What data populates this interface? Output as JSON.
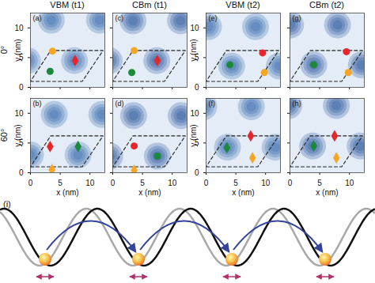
{
  "column_titles": [
    "VBM (t1)",
    "CBm (t1)",
    "VBM (t2)",
    "CBm (t2)"
  ],
  "row_labels": [
    "0°",
    "60°"
  ],
  "schematic": {
    "label": "(i)"
  },
  "chart_data": [
    {
      "type": "scatter",
      "title": "(a)",
      "xlim": [
        0,
        12.5
      ],
      "ylim": [
        0,
        12.5
      ],
      "xticks": [
        0,
        5,
        10
      ],
      "yticks": [
        0,
        5,
        10
      ],
      "y_label": "y (nm)",
      "tick_labels": "y",
      "blobs": {
        "color": "#2f63aa",
        "x": [
          7.4,
          3.5,
          11.6,
          -0.5,
          3.5,
          11.5
        ],
        "y": [
          4.5,
          11.3,
          11.3,
          4.5,
          -2.3,
          -2.3
        ]
      },
      "cell": {
        "line_style": "dashed",
        "x": [
          0,
          8.7,
          12.2,
          3.4
        ],
        "y": [
          1,
          1,
          6.2,
          6.2
        ]
      },
      "markers": [
        {
          "color": "#f5a623",
          "marker": "circle",
          "x": 3.7,
          "y": 6.1
        },
        {
          "color": "#e8262a",
          "marker": "diamond",
          "x": 7.5,
          "y": 4.5
        },
        {
          "color": "#1a8a3a",
          "marker": "circle",
          "x": 3.3,
          "y": 2.7
        }
      ]
    },
    {
      "type": "scatter",
      "title": "(b)",
      "xlim": [
        0,
        12.5
      ],
      "ylim": [
        0,
        12.5
      ],
      "xticks": [
        0,
        5,
        10
      ],
      "yticks": [
        0,
        5,
        10
      ],
      "x_label": "x (nm)",
      "y_label": "y (nm)",
      "blobs": {
        "color": "#2f63aa",
        "x": [
          4.0,
          12.0,
          8.0,
          0.0
        ],
        "y": [
          9.8,
          9.8,
          3.0,
          3.0
        ]
      },
      "cell": {
        "line_style": "dashed",
        "x": [
          0,
          8.7,
          12.2,
          3.4
        ],
        "y": [
          1,
          1,
          6.2,
          6.2
        ]
      },
      "markers": [
        {
          "color": "#e8262a",
          "marker": "diamond",
          "x": 3.3,
          "y": 4.4
        },
        {
          "color": "#1a8a3a",
          "marker": "diamond",
          "x": 8.0,
          "y": 4.4
        },
        {
          "color": "#f5a623",
          "marker": "diamond",
          "x": 3.6,
          "y": 0.5
        }
      ]
    },
    {
      "type": "scatter",
      "title": "(c)",
      "xlim": [
        0,
        12.5
      ],
      "ylim": [
        0,
        12.5
      ],
      "xticks": [
        0,
        5,
        10
      ],
      "yticks": [
        0,
        5,
        10
      ],
      "tick_labels": false,
      "blobs": {
        "color": "#24529a",
        "x": [
          7.4,
          3.4,
          11.4,
          -0.6
        ],
        "y": [
          4.5,
          11.2,
          11.2,
          4.5
        ]
      },
      "cell": {
        "line_style": "dashed",
        "x": [
          0,
          8.7,
          12.2,
          3.4
        ],
        "y": [
          1,
          1,
          6.2,
          6.2
        ]
      },
      "markers": [
        {
          "color": "#f5a623",
          "marker": "circle",
          "x": 3.6,
          "y": 6.2
        },
        {
          "color": "#e8262a",
          "marker": "diamond",
          "x": 7.5,
          "y": 4.5
        },
        {
          "color": "#1a8a3a",
          "marker": "circle",
          "x": 3.2,
          "y": 2.5
        }
      ]
    },
    {
      "type": "scatter",
      "title": "(d)",
      "xlim": [
        0,
        12.5
      ],
      "ylim": [
        0,
        12.5
      ],
      "xticks": [
        0,
        5,
        10
      ],
      "yticks": [
        0,
        5,
        10
      ],
      "x_label": "x (nm)",
      "tick_labels": "x",
      "blobs": {
        "color": "#24529a",
        "x": [
          7.5,
          3.5,
          11.5,
          -0.5
        ],
        "y": [
          2.8,
          9.6,
          9.6,
          2.8
        ]
      },
      "cell": {
        "line_style": "dashed",
        "x": [
          0,
          8.7,
          12.2,
          3.4
        ],
        "y": [
          1,
          1,
          6.2,
          6.2
        ]
      },
      "markers": [
        {
          "color": "#e8262a",
          "marker": "circle",
          "x": 3.6,
          "y": 4.5
        },
        {
          "color": "#1a8a3a",
          "marker": "circle",
          "x": 7.5,
          "y": 2.8
        },
        {
          "color": "#f5a623",
          "marker": "diamond",
          "x": 3.6,
          "y": 0.4
        }
      ]
    },
    {
      "type": "scatter",
      "title": "(e)",
      "xlim": [
        0,
        12.5
      ],
      "ylim": [
        0,
        12.5
      ],
      "xticks": [
        0,
        5,
        10
      ],
      "yticks": [
        0,
        5,
        10
      ],
      "y_label": "y (nm)",
      "tick_labels": "y",
      "blobs": {
        "color": "#2f63aa",
        "x": [
          4.3,
          0.4,
          8.3,
          12.3
        ],
        "y": [
          3.6,
          10.2,
          10.2,
          3.6
        ]
      },
      "cell": {
        "line_style": "dashed",
        "x": [
          0,
          8.7,
          12.2,
          3.4
        ],
        "y": [
          1,
          1,
          6.2,
          6.2
        ]
      },
      "markers": [
        {
          "color": "#e8262a",
          "marker": "circle",
          "x": 9.5,
          "y": 5.8
        },
        {
          "color": "#f5a623",
          "marker": "circle",
          "x": 9.8,
          "y": 2.5
        },
        {
          "color": "#1a8a3a",
          "marker": "circle",
          "x": 4.0,
          "y": 3.8
        }
      ]
    },
    {
      "type": "scatter",
      "title": "(f)",
      "xlim": [
        0,
        12.5
      ],
      "ylim": [
        0,
        12.5
      ],
      "xticks": [
        0,
        5,
        10
      ],
      "yticks": [
        0,
        5,
        10
      ],
      "x_label": "x (nm)",
      "y_label": "y (nm)",
      "blobs": {
        "color": "#2f63aa",
        "x": [
          3.6,
          7.6,
          -0.4,
          11.6
        ],
        "y": [
          4.3,
          11.1,
          11.1,
          4.3
        ]
      },
      "cell": {
        "line_style": "dashed",
        "x": [
          0,
          8.7,
          12.2,
          3.4
        ],
        "y": [
          1,
          1,
          6.2,
          6.2
        ]
      },
      "markers": [
        {
          "color": "#e8262a",
          "marker": "diamond",
          "x": 7.5,
          "y": 6.2
        },
        {
          "color": "#1a8a3a",
          "marker": "diamond",
          "x": 3.5,
          "y": 4.2
        },
        {
          "color": "#f5a623",
          "marker": "diamond",
          "x": 7.8,
          "y": 2.5
        }
      ]
    },
    {
      "type": "scatter",
      "title": "(g)",
      "xlim": [
        0,
        12.5
      ],
      "ylim": [
        0,
        12.5
      ],
      "xticks": [
        0,
        5,
        10
      ],
      "yticks": [
        0,
        5,
        10
      ],
      "tick_labels": false,
      "blobs": {
        "color": "#24529a",
        "x": [
          4.0,
          0.1,
          8.0,
          12.0
        ],
        "y": [
          3.8,
          10.5,
          10.5,
          3.8
        ]
      },
      "cell": {
        "line_style": "dashed",
        "x": [
          0,
          8.7,
          12.2,
          3.4
        ],
        "y": [
          1,
          1,
          6.2,
          6.2
        ]
      },
      "markers": [
        {
          "color": "#e8262a",
          "marker": "circle",
          "x": 9.5,
          "y": 6.0
        },
        {
          "color": "#f5a623",
          "marker": "circle",
          "x": 9.8,
          "y": 2.5
        },
        {
          "color": "#1a8a3a",
          "marker": "circle",
          "x": 4.0,
          "y": 3.8
        }
      ]
    },
    {
      "type": "scatter",
      "title": "(h)",
      "xlim": [
        0,
        12.5
      ],
      "ylim": [
        0,
        12.5
      ],
      "xticks": [
        0,
        5,
        10
      ],
      "yticks": [
        0,
        5,
        10
      ],
      "x_label": "x (nm)",
      "tick_labels": "x",
      "blobs": {
        "color": "#24529a",
        "x": [
          3.8,
          7.8,
          -0.2,
          11.8
        ],
        "y": [
          4.5,
          11.3,
          11.3,
          4.5
        ]
      },
      "cell": {
        "line_style": "dashed",
        "x": [
          0,
          8.7,
          12.2,
          3.4
        ],
        "y": [
          1,
          1,
          6.2,
          6.2
        ]
      },
      "markers": [
        {
          "color": "#e8262a",
          "marker": "diamond",
          "x": 7.5,
          "y": 6.2
        },
        {
          "color": "#1a8a3a",
          "marker": "diamond",
          "x": 4.0,
          "y": 4.5
        },
        {
          "color": "#f5a623",
          "marker": "diamond",
          "x": 7.8,
          "y": 2.5
        }
      ]
    }
  ]
}
